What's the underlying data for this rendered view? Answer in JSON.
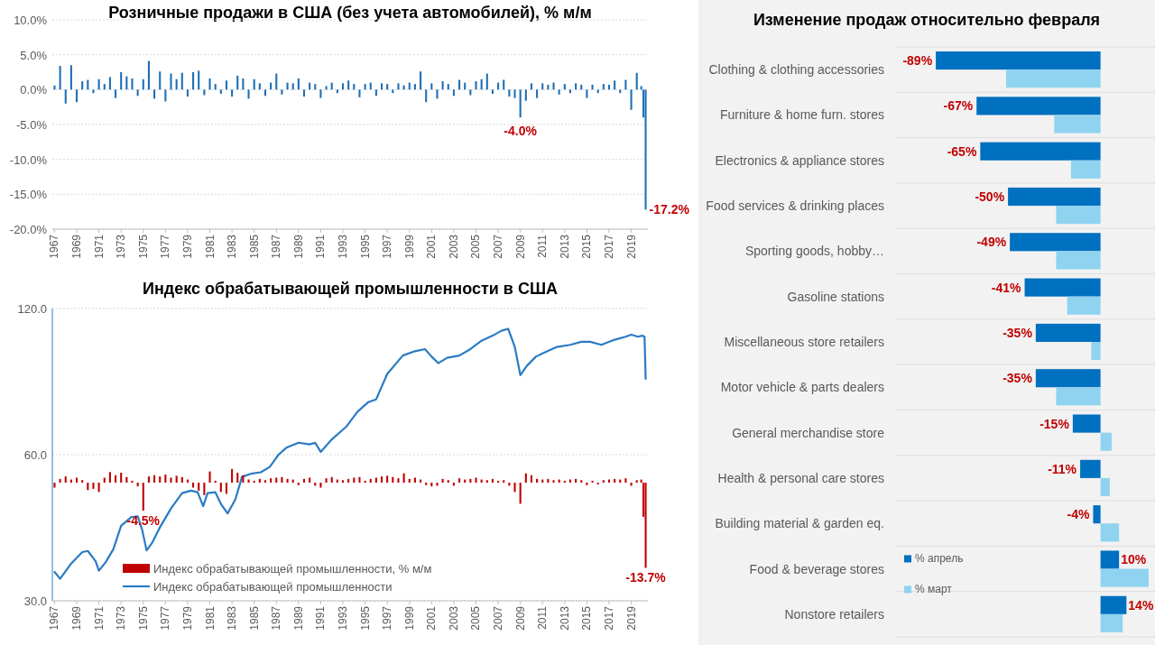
{
  "chart_data": [
    {
      "type": "bar",
      "title": "Розничные продажи в США (без учета автомобилей), % м/м",
      "series": [
        {
          "color": "#1f6fb5",
          "x": [
            1967,
            1967.5,
            1968,
            1968.5,
            1969,
            1969.5,
            1970,
            1970.5,
            1971,
            1971.5,
            1972,
            1972.5,
            1973,
            1973.5,
            1974,
            1974.5,
            1975,
            1975.5,
            1976,
            1976.5,
            1977,
            1977.5,
            1978,
            1978.5,
            1979,
            1979.5,
            1980,
            1980.5,
            1981,
            1981.5,
            1982,
            1982.5,
            1983,
            1983.5,
            1984,
            1984.5,
            1985,
            1985.5,
            1986,
            1986.5,
            1987,
            1987.5,
            1988,
            1988.5,
            1989,
            1989.5,
            1990,
            1990.5,
            1991,
            1991.5,
            1992,
            1992.5,
            1993,
            1993.5,
            1994,
            1994.5,
            1995,
            1995.5,
            1996,
            1996.5,
            1997,
            1997.5,
            1998,
            1998.5,
            1999,
            1999.5,
            2000,
            2000.5,
            2001,
            2001.5,
            2002,
            2002.5,
            2003,
            2003.5,
            2004,
            2004.5,
            2005,
            2005.5,
            2006,
            2006.5,
            2007,
            2007.5,
            2008,
            2008.5,
            2009,
            2009.5,
            2010,
            2010.5,
            2011,
            2011.5,
            2012,
            2012.5,
            2013,
            2013.5,
            2014,
            2014.5,
            2015,
            2015.5,
            2016,
            2016.5,
            2017,
            2017.5,
            2018,
            2018.5,
            2019,
            2019.5,
            2019.9,
            2020.1,
            2020.3
          ],
          "values": [
            0.6,
            3.4,
            -2.0,
            3.5,
            -1.8,
            1.2,
            1.4,
            -0.5,
            1.5,
            0.8,
            1.8,
            -1.2,
            2.5,
            1.9,
            1.6,
            -0.9,
            1.5,
            4.1,
            -1.3,
            2.6,
            -1.7,
            2.3,
            1.5,
            2.4,
            -1.0,
            2.5,
            2.7,
            -0.8,
            1.6,
            0.8,
            -0.6,
            1.3,
            -1.0,
            2.0,
            1.6,
            -1.3,
            1.5,
            0.9,
            -0.9,
            1.0,
            2.3,
            -0.7,
            1.0,
            0.9,
            1.6,
            -1.0,
            1.0,
            0.8,
            -1.2,
            0.5,
            1.0,
            -0.5,
            0.9,
            1.3,
            0.8,
            -1.1,
            0.8,
            1.0,
            -0.9,
            0.9,
            0.8,
            -0.5,
            0.9,
            0.6,
            1.0,
            0.8,
            2.6,
            -1.8,
            0.9,
            -1.3,
            1.2,
            0.8,
            -0.9,
            1.4,
            1.0,
            -0.8,
            1.2,
            1.5,
            2.3,
            -0.6,
            1.0,
            1.4,
            -1.0,
            -1.2,
            -4.0,
            -1.6,
            0.9,
            -1.2,
            0.9,
            0.7,
            1.0,
            -0.7,
            0.8,
            -0.5,
            0.9,
            0.7,
            -1.2,
            0.7,
            -0.5,
            0.8,
            0.7,
            1.3,
            -0.5,
            1.4,
            -2.9,
            2.4,
            0.5,
            -4.0,
            -17.2
          ]
        }
      ],
      "xlim": [
        1966.8,
        2020.5
      ],
      "xticks": [
        1967,
        1969,
        1971,
        1973,
        1975,
        1977,
        1979,
        1981,
        1983,
        1985,
        1987,
        1989,
        1991,
        1993,
        1995,
        1997,
        1999,
        2001,
        2003,
        2005,
        2007,
        2009,
        2011,
        2013,
        2015,
        2017,
        2019
      ],
      "ylim": [
        -20,
        10
      ],
      "yticks": [
        {
          "value": -20,
          "label": "-20.0%"
        },
        {
          "value": -15,
          "label": "-15.0%"
        },
        {
          "value": -10,
          "label": "-10.0%"
        },
        {
          "value": -5,
          "label": "-5.0%"
        },
        {
          "value": 0,
          "label": "0.0%"
        },
        {
          "value": 5,
          "label": "5.0%"
        },
        {
          "value": 10,
          "label": "10.0%"
        }
      ],
      "grid": "y",
      "annotations": [
        {
          "text": "-4.0%",
          "x": 2009,
          "y": -4.0
        },
        {
          "text": "-17.2%",
          "x": 2020.3,
          "y": -17.2
        }
      ]
    },
    {
      "type": "line",
      "title": "Индекс обрабатывающей промышленности в США",
      "series": [
        {
          "name": "Индекс обрабатывающей промышленности",
          "color": "#2a7bc4",
          "x": [
            1967.0,
            1967.5,
            1968.5,
            1969.5,
            1970.0,
            1970.7,
            1971.0,
            1971.6,
            1972.3,
            1973.0,
            1973.9,
            1974.5,
            1974.9,
            1975.3,
            1975.8,
            1976.5,
            1977.5,
            1978.5,
            1979.3,
            1979.9,
            1980.4,
            1980.8,
            1981.5,
            1982.0,
            1982.6,
            1983.3,
            1983.9,
            1984.7,
            1985.6,
            1986.4,
            1987.2,
            1987.9,
            1989.0,
            1990.0,
            1990.5,
            1991.0,
            1992.0,
            1993.3,
            1994.3,
            1995.3,
            1996.0,
            1997.0,
            1998.4,
            1999.5,
            2000.4,
            2001.0,
            2001.6,
            2002.4,
            2003.5,
            2004.5,
            2005.5,
            2006.5,
            2007.3,
            2007.9,
            2008.5,
            2009.0,
            2009.6,
            2010.4,
            2011.0,
            2012.3,
            2013.5,
            2014.5,
            2015.3,
            2016.3,
            2017.5,
            2018.5,
            2019.0,
            2019.6,
            2020.0,
            2020.2,
            2020.3
          ],
          "values": [
            34.4,
            33.3,
            35.8,
            37.8,
            38.0,
            36.2,
            34.6,
            36.0,
            38.3,
            42.8,
            44.6,
            44.8,
            42.0,
            38.1,
            39.5,
            42.5,
            46.5,
            50.0,
            50.6,
            50.2,
            47.0,
            50.0,
            50.2,
            47.5,
            45.4,
            48.5,
            54.0,
            54.8,
            55.2,
            56.6,
            60.0,
            62.0,
            63.5,
            63.0,
            63.5,
            60.8,
            64.5,
            68.5,
            73.5,
            77.0,
            78.0,
            88.0,
            96.0,
            98.0,
            99.0,
            95.5,
            92.6,
            95.0,
            96.0,
            99.0,
            103.0,
            105.5,
            108.0,
            109.0,
            100.0,
            87.5,
            91.5,
            95.5,
            97.0,
            100.0,
            101.0,
            102.5,
            102.5,
            101.0,
            103.5,
            105.0,
            106.0,
            105.0,
            105.5,
            105.0,
            86.0
          ]
        }
      ],
      "xlim": [
        1966.8,
        2020.5
      ],
      "xticks": [
        1967,
        1969,
        1971,
        1973,
        1975,
        1977,
        1979,
        1981,
        1983,
        1985,
        1987,
        1989,
        1991,
        1993,
        1995,
        1997,
        1999,
        2001,
        2003,
        2005,
        2007,
        2009,
        2011,
        2013,
        2015,
        2017,
        2019
      ],
      "ylim": [
        30,
        120
      ],
      "yticks": [
        {
          "value": 30,
          "label": "30.0"
        },
        {
          "value": 60,
          "label": "60.0"
        },
        {
          "value": 120,
          "label": "120.0"
        }
      ],
      "log": "y",
      "grid": "y",
      "legend": "bottom"
    },
    {
      "type": "bar",
      "tick_labels": false,
      "legend": "bottom",
      "ylim": [
        -19,
        28
      ],
      "series": [
        {
          "name": "Индекс обрабатывающей промышленности, % м/м",
          "color": "#c00000",
          "x": [
            1967,
            1967.5,
            1968,
            1968.5,
            1969,
            1969.5,
            1970,
            1970.5,
            1971,
            1971.5,
            1972,
            1972.5,
            1973,
            1973.5,
            1974,
            1974.5,
            1975,
            1975.5,
            1976,
            1976.5,
            1977,
            1977.5,
            1978,
            1978.5,
            1979,
            1979.5,
            1980,
            1980.5,
            1981,
            1981.5,
            1982,
            1982.5,
            1983,
            1983.5,
            1984,
            1984.5,
            1985,
            1985.5,
            1986,
            1986.5,
            1987,
            1987.5,
            1988,
            1988.5,
            1989,
            1989.5,
            1990,
            1990.5,
            1991,
            1991.5,
            1992,
            1992.5,
            1993,
            1993.5,
            1994,
            1994.5,
            1995,
            1995.5,
            1996,
            1996.5,
            1997,
            1997.5,
            1998,
            1998.5,
            1999,
            1999.5,
            2000,
            2000.5,
            2001,
            2001.5,
            2002,
            2002.5,
            2003,
            2003.5,
            2004,
            2004.5,
            2005,
            2005.5,
            2006,
            2006.5,
            2007,
            2007.5,
            2008,
            2008.5,
            2009,
            2009.5,
            2010,
            2010.5,
            2011,
            2011.5,
            2012,
            2012.5,
            2013,
            2013.5,
            2014,
            2014.5,
            2015,
            2015.5,
            2016,
            2016.5,
            2017,
            2017.5,
            2018,
            2018.5,
            2019,
            2019.5,
            2019.9,
            2020.1,
            2020.3
          ],
          "values": [
            -0.8,
            0.6,
            1.0,
            0.5,
            0.8,
            0.4,
            -1.2,
            -1.0,
            -1.5,
            0.8,
            1.7,
            1.2,
            1.6,
            0.9,
            0.3,
            -0.6,
            -4.5,
            1.0,
            1.2,
            1.0,
            1.3,
            0.8,
            1.1,
            0.9,
            0.5,
            -0.8,
            -1.3,
            -2.0,
            1.8,
            0.3,
            -1.5,
            -1.8,
            2.2,
            1.6,
            1.2,
            0.5,
            0.3,
            0.6,
            0.4,
            0.7,
            0.8,
            0.9,
            0.6,
            0.5,
            -0.4,
            0.6,
            0.8,
            -0.5,
            -0.8,
            0.7,
            0.9,
            0.5,
            0.4,
            0.6,
            0.8,
            0.9,
            0.3,
            0.6,
            0.8,
            1.0,
            1.1,
            0.9,
            0.7,
            1.5,
            0.6,
            0.8,
            0.5,
            -0.4,
            -0.6,
            -0.5,
            0.6,
            0.4,
            -0.5,
            0.7,
            0.5,
            0.6,
            0.8,
            0.5,
            0.4,
            0.6,
            0.3,
            0.4,
            -0.5,
            -1.5,
            -3.4,
            1.5,
            1.2,
            0.6,
            0.5,
            0.6,
            0.4,
            0.5,
            0.3,
            0.5,
            0.6,
            0.4,
            -0.4,
            0.3,
            -0.3,
            0.4,
            0.5,
            0.6,
            0.5,
            0.7,
            -0.5,
            0.4,
            0.5,
            -5.5,
            -13.7
          ],
          "value_labels": [
            null,
            null,
            null,
            null,
            null,
            null,
            null,
            null,
            null,
            null,
            null,
            null,
            null,
            null,
            null,
            null,
            "-4.5%",
            null,
            null,
            null,
            null,
            null,
            null,
            null,
            null,
            null,
            null,
            null,
            null,
            null,
            null,
            null,
            null,
            null,
            null,
            null,
            null,
            null,
            null,
            null,
            null,
            null,
            null,
            null,
            null,
            null,
            null,
            null,
            null,
            null,
            null,
            null,
            null,
            null,
            null,
            null,
            null,
            null,
            null,
            null,
            null,
            null,
            null,
            null,
            null,
            null,
            null,
            null,
            null,
            null,
            null,
            null,
            null,
            null,
            null,
            null,
            null,
            null,
            null,
            null,
            null,
            null,
            null,
            null,
            null,
            null,
            null,
            null,
            null,
            null,
            null,
            null,
            null,
            null,
            null,
            null,
            null,
            null,
            null,
            null,
            null,
            null,
            null,
            null,
            null,
            null,
            null,
            null,
            "-13.7%"
          ]
        }
      ],
      "xlim": [
        1966.8,
        2020.5
      ]
    },
    {
      "type": "bar",
      "orientation": "horizontal",
      "title": "Изменение продаж относительно февраля",
      "categories": [
        "Clothing & clothing accessories",
        "Furniture & home furn. stores",
        "Electronics & appliance stores",
        "Food services & drinking places",
        "Sporting goods, hobby…",
        "Gasoline stations",
        "Miscellaneous store retailers",
        "Motor vehicle & parts dealers",
        "General merchandise store",
        "Health & personal care stores",
        "Building material & garden eq.",
        "Food & beverage stores",
        "Nonstore retailers"
      ],
      "series": [
        {
          "name": "% апрель",
          "color": "#0070c0",
          "values": [
            -89,
            -67,
            -65,
            -50,
            -49,
            -41,
            -35,
            -35,
            -15,
            -11,
            -4,
            10,
            14
          ],
          "value_labels": [
            "-89%",
            "-67%",
            "-65%",
            "-50%",
            "-49%",
            "-41%",
            "-35%",
            "-35%",
            "-15%",
            "-11%",
            "-4%",
            "10%",
            "14%"
          ]
        },
        {
          "name": "% март",
          "color": "#8fd3f0",
          "values": [
            -51,
            -25,
            -16,
            -24,
            -24,
            -18,
            -5,
            -24,
            6,
            5,
            10,
            26,
            12
          ]
        }
      ],
      "xlim": [
        -111,
        27
      ],
      "tick_labels": "y",
      "grid": "y",
      "legend": "bottom left"
    }
  ]
}
